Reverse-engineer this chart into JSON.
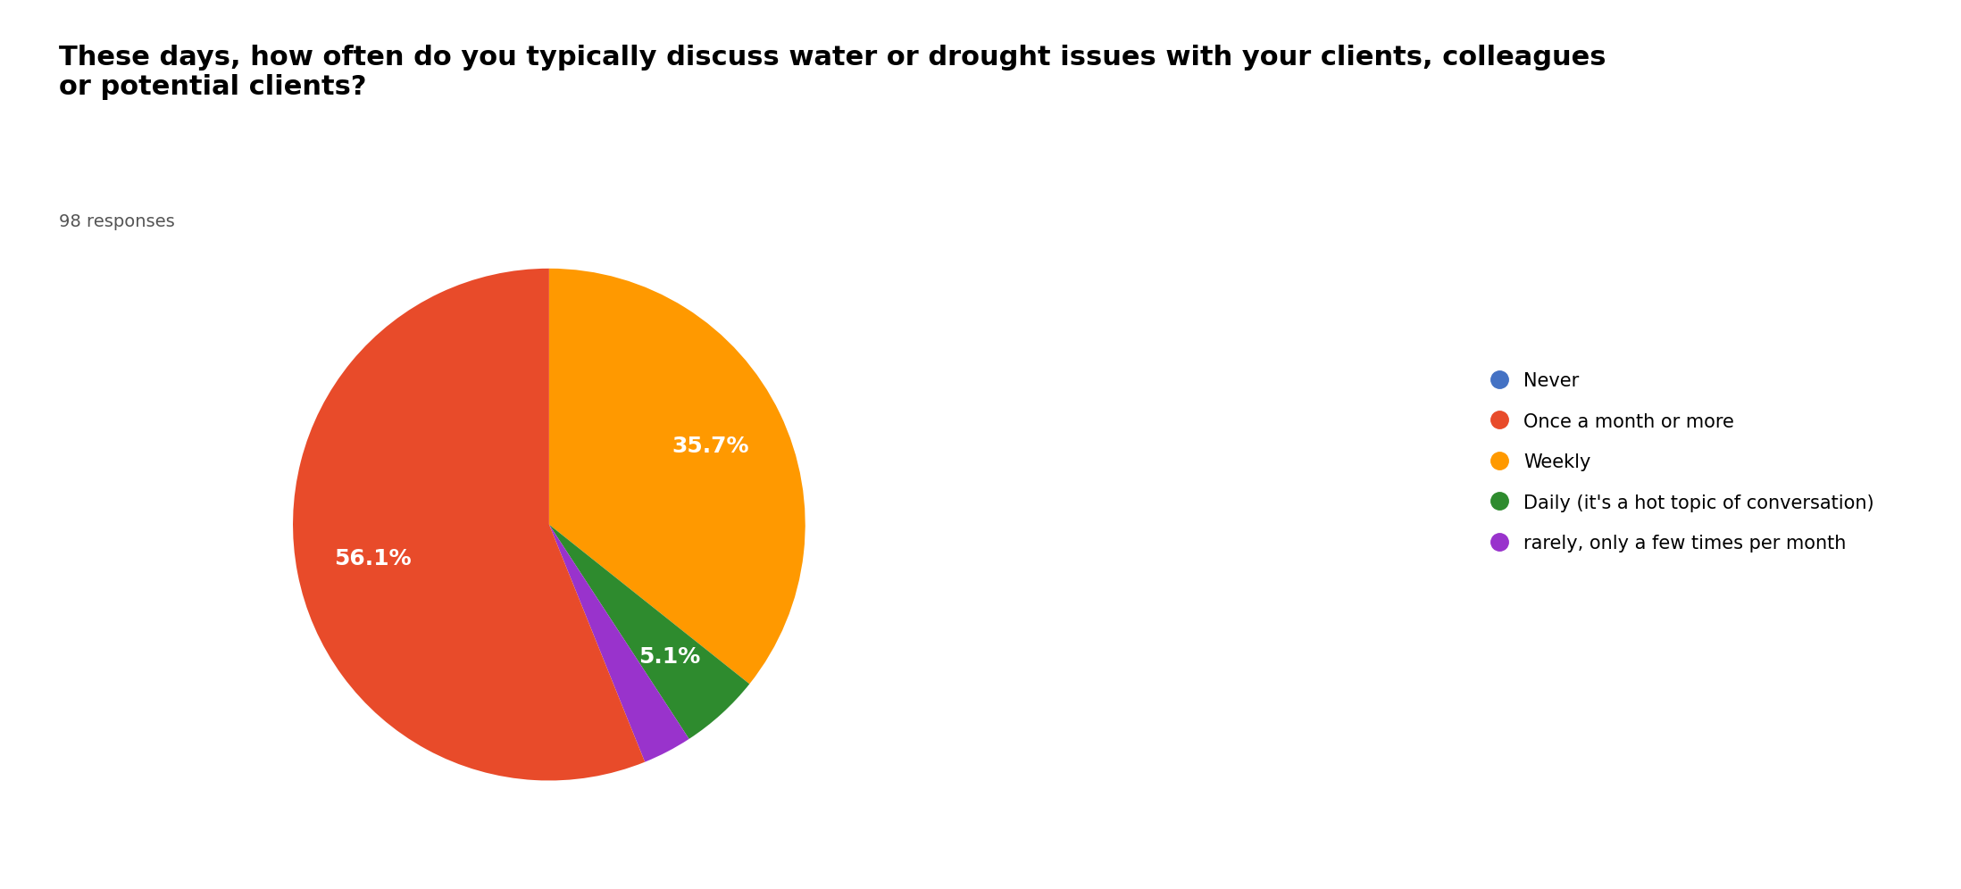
{
  "title": "These days, how often do you typically discuss water or drought issues with your clients, colleagues\nor potential clients?",
  "subtitle": "98 responses",
  "legend_labels": [
    "Never",
    "Once a month or more",
    "Weekly",
    "Daily (it's a hot topic of conversation)",
    "rarely, only a few times per month"
  ],
  "legend_colors": [
    "#4472C4",
    "#E84B2A",
    "#FF9900",
    "#2E8B2E",
    "#9933CC"
  ],
  "plot_labels": [
    "Weekly",
    "Daily (it's a hot topic of conversation)",
    "rarely, only a few times per month",
    "Never",
    "Once a month or more"
  ],
  "plot_values": [
    35.7,
    5.1,
    3.1,
    0.0,
    56.1
  ],
  "plot_colors": [
    "#FF9900",
    "#2E8B2E",
    "#9933CC",
    "#4472C4",
    "#E84B2A"
  ],
  "background_color": "#ffffff",
  "title_fontsize": 22,
  "subtitle_fontsize": 14,
  "legend_fontsize": 15,
  "pct_fontsize": 18
}
